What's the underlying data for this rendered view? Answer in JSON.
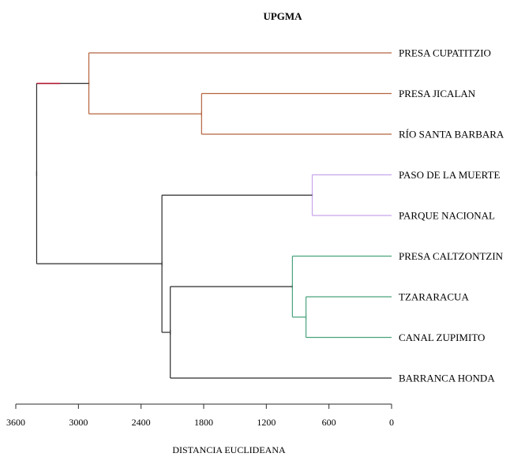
{
  "title": "UPGMA",
  "axis": {
    "label": "DISTANCIA EUCLIDEANA",
    "reversed": true,
    "range": [
      0,
      3600
    ],
    "ticks": [
      {
        "value": 3600,
        "label": "3600"
      },
      {
        "value": 3000,
        "label": "3000"
      },
      {
        "value": 2400,
        "label": "2400"
      },
      {
        "value": 1800,
        "label": "1800"
      },
      {
        "value": 1200,
        "label": "1200"
      },
      {
        "value": 600,
        "label": "600"
      },
      {
        "value": 0,
        "label": "0"
      }
    ]
  },
  "colors": {
    "brown": "#b5643e",
    "purple": "#c8a4ec",
    "green": "#4aa37d",
    "black": "#2b2b2b",
    "red": "#b2122e"
  },
  "leaves": [
    {
      "id": "cupatitzio",
      "label": "PRESA CUPATITZIO"
    },
    {
      "id": "jicalan",
      "label": "PRESA JICALAN"
    },
    {
      "id": "santabarbara",
      "label": "RÍO SANTA BARBARA"
    },
    {
      "id": "pasomuerte",
      "label": "PASO DE LA MUERTE"
    },
    {
      "id": "parquenacional",
      "label": "PARQUE NACIONAL"
    },
    {
      "id": "caltzontzin",
      "label": "PRESA CALTZONTZIN"
    },
    {
      "id": "tzararacua",
      "label": "TZARARACUA"
    },
    {
      "id": "zupimito",
      "label": "CANAL ZUPIMITO"
    },
    {
      "id": "barranca",
      "label": "BARRANCA HONDA"
    }
  ],
  "merges": [
    {
      "id": "m1",
      "children": [
        "tzararacua",
        "zupimito"
      ],
      "height": 820,
      "color": "green"
    },
    {
      "id": "m2",
      "children": [
        "pasomuerte",
        "parquenacional"
      ],
      "height": 760,
      "color": "purple"
    },
    {
      "id": "m3",
      "children": [
        "caltzontzin",
        "m1"
      ],
      "height": 950,
      "color": "green"
    },
    {
      "id": "m4",
      "children": [
        "jicalan",
        "santabarbara"
      ],
      "height": 1820,
      "color": "brown"
    },
    {
      "id": "m5",
      "children": [
        "m3",
        "barranca"
      ],
      "height": 2120,
      "color": "black"
    },
    {
      "id": "m6",
      "children": [
        "m2",
        "m5"
      ],
      "height": 2200,
      "color": "black"
    },
    {
      "id": "m7",
      "children": [
        "cupatitzio",
        "m4"
      ],
      "height": 2900,
      "color": "brown"
    },
    {
      "id": "root",
      "children": [
        "m7",
        "m6"
      ],
      "height": 3400,
      "color": "black",
      "left_segment_color": "red"
    }
  ]
}
